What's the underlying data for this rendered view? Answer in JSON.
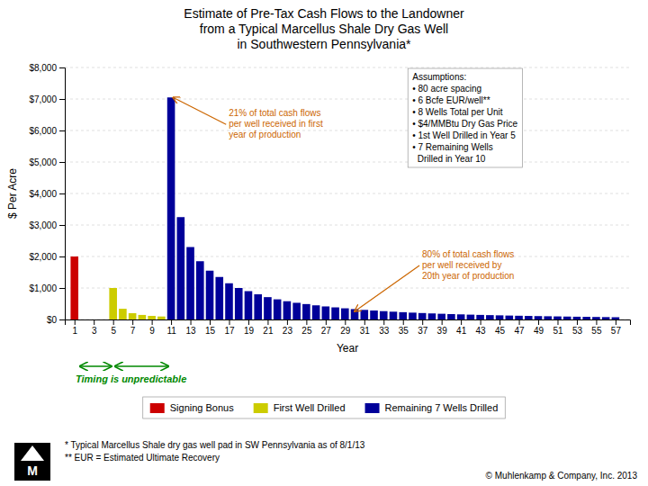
{
  "chart_data": {
    "type": "bar",
    "title": "Estimate of Pre-Tax Cash Flows to the Landowner\nfrom a Typical Marcellus Shale Dry Gas Well\nin Southwestern Pennsylvania*",
    "x_label": "Year",
    "y_label": "$ Per Acre",
    "xlim": [
      0,
      58.5
    ],
    "xticks": [
      1,
      3,
      5,
      7,
      9,
      11,
      13,
      15,
      17,
      19,
      21,
      23,
      25,
      27,
      29,
      31,
      33,
      35,
      37,
      39,
      41,
      43,
      45,
      47,
      49,
      51,
      53,
      55,
      57
    ],
    "ylim": [
      0,
      8000
    ],
    "yticks": [
      {
        "value": 0,
        "label": "$0"
      },
      {
        "value": 1000,
        "label": "$1,000"
      },
      {
        "value": 2000,
        "label": "$2,000"
      },
      {
        "value": 3000,
        "label": "$3,000"
      },
      {
        "value": 4000,
        "label": "$4,000"
      },
      {
        "value": 5000,
        "label": "$5,000"
      },
      {
        "value": 6000,
        "label": "$6,000"
      },
      {
        "value": 7000,
        "label": "$7,000"
      },
      {
        "value": 8000,
        "label": "$8,000"
      }
    ],
    "grid": true,
    "legend": "bottom",
    "series": [
      {
        "name": "Signing Bonus",
        "color": "#cc0000",
        "x": [
          1
        ],
        "values": [
          2000
        ]
      },
      {
        "name": "First Well Drilled",
        "color": "#cccc00",
        "x": [
          5,
          6,
          7,
          8,
          9,
          10
        ],
        "values": [
          1000,
          340,
          200,
          145,
          115,
          95
        ]
      },
      {
        "name": "Remaining 7 Wells Drilled",
        "color": "#000099",
        "x": [
          11,
          12,
          13,
          14,
          15,
          16,
          17,
          18,
          19,
          20,
          21,
          22,
          23,
          24,
          25,
          26,
          27,
          28,
          29,
          30,
          31,
          32,
          33,
          34,
          35,
          36,
          37,
          38,
          39,
          40,
          41,
          42,
          43,
          44,
          45,
          46,
          47,
          48,
          49,
          50,
          51,
          52,
          53,
          54,
          55,
          56,
          57
        ],
        "values": [
          7050,
          3250,
          2300,
          1850,
          1550,
          1350,
          1150,
          1000,
          900,
          800,
          710,
          640,
          580,
          530,
          490,
          450,
          415,
          385,
          355,
          330,
          305,
          285,
          265,
          248,
          232,
          218,
          205,
          193,
          182,
          172,
          163,
          154,
          146,
          139,
          132,
          125,
          119,
          113,
          108,
          103,
          98,
          93,
          88,
          84,
          80,
          76,
          72
        ]
      }
    ],
    "annotations": [
      {
        "text": "21% of total cash flows\nper well received in first\nyear of production",
        "color": "#cc6600",
        "x": 11.2,
        "y": 7050
      },
      {
        "text": "80% of total cash flows\nper well received by\n20th year of production",
        "color": "#cc6600",
        "x": 30,
        "y": 260
      }
    ],
    "assumptions_text": "Assumptions:\n• 80 acre spacing\n• 6 Bcfe EUR/well**\n• 8 Wells Total per Unit\n• $4/MMBtu Dry Gas Price\n• 1st Well Drilled in Year 5\n• 7 Remaining Wells\n  Drilled in Year 10",
    "timing_text": "Timing is unpredictable",
    "timing_color": "#008800",
    "footnotes": [
      "* Typical Marcellus Shale dry gas well pad in SW Pennsylvania as of 8/1/13",
      "** EUR = Estimated Ultimate Recovery"
    ],
    "copyright": "© Muhlenkamp & Company, Inc. 2013",
    "logo_text": "M"
  }
}
